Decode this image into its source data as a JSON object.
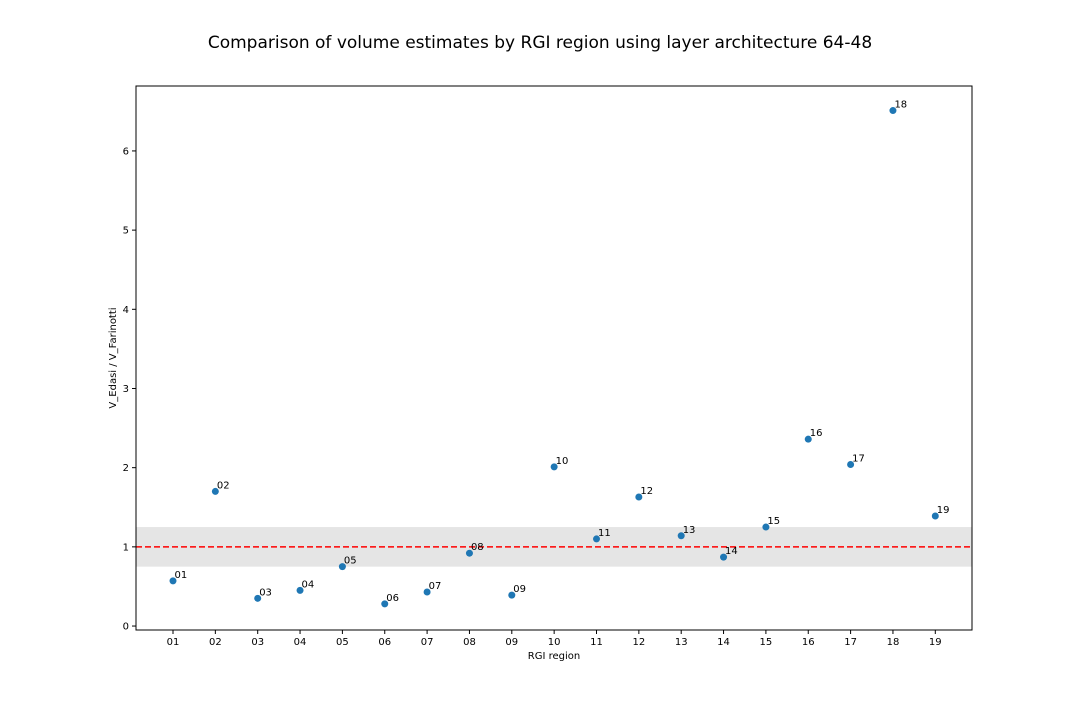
{
  "chart_data": {
    "type": "scatter",
    "title": "Comparison of volume estimates by RGI region using layer architecture 64-48",
    "xlabel": "RGI region",
    "ylabel": "V_Edasi / V_Farinotti",
    "categories": [
      "01",
      "02",
      "03",
      "04",
      "05",
      "06",
      "07",
      "08",
      "09",
      "10",
      "11",
      "12",
      "13",
      "14",
      "15",
      "16",
      "17",
      "18",
      "19"
    ],
    "values": [
      0.57,
      1.7,
      0.35,
      0.45,
      0.75,
      0.28,
      0.43,
      0.92,
      0.39,
      2.01,
      1.1,
      1.63,
      1.14,
      0.87,
      1.25,
      2.36,
      2.04,
      6.51,
      1.39
    ],
    "point_labels": [
      "01",
      "02",
      "03",
      "04",
      "05",
      "06",
      "07",
      "08",
      "09",
      "10",
      "11",
      "12",
      "13",
      "14",
      "15",
      "16",
      "17",
      "18",
      "19"
    ],
    "ylim": [
      -0.05,
      6.82
    ],
    "yticks": [
      0,
      1,
      2,
      3,
      4,
      5,
      6
    ],
    "reference_line": {
      "y": 1.0,
      "style": "dashed",
      "color": "#ff0000"
    },
    "band": {
      "y0": 0.75,
      "y1": 1.25,
      "color": "#e5e5e5"
    },
    "marker_color": "#1f77b4",
    "grid": false,
    "legend": "none"
  }
}
